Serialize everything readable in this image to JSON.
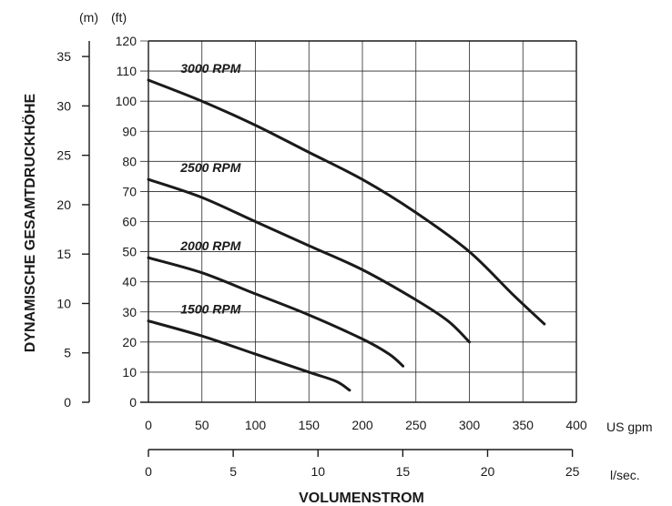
{
  "chart_data": {
    "type": "line",
    "ylabel": "DYNAMISCHE GESAMTDRUCKHÖHE",
    "xlabel": "VOLUMENSTROM",
    "y_ft_unit": "(ft)",
    "y_m_unit": "(m)",
    "x_gpm_unit": "US gpm",
    "x_ls_unit": "l/sec.",
    "ylim_ft": [
      0,
      120
    ],
    "ylim_m": [
      0,
      35
    ],
    "xlim_gpm": [
      0,
      400
    ],
    "xlim_ls": [
      0,
      25
    ],
    "y_ft_ticks": [
      "0",
      "10",
      "20",
      "30",
      "40",
      "50",
      "60",
      "70",
      "80",
      "90",
      "100",
      "110",
      "120"
    ],
    "y_m_ticks": [
      "0",
      "5",
      "10",
      "15",
      "20",
      "25",
      "30",
      "35"
    ],
    "x_gpm_ticks": [
      "0",
      "50",
      "100",
      "150",
      "200",
      "250",
      "300",
      "350",
      "400"
    ],
    "x_ls_ticks": [
      "0",
      "5",
      "10",
      "15",
      "20",
      "25"
    ],
    "grid": true,
    "series": [
      {
        "name": "3000 RPM",
        "x": [
          0,
          50,
          100,
          150,
          200,
          250,
          300,
          340,
          370
        ],
        "y": [
          107,
          100,
          92,
          83,
          74,
          63,
          50,
          36,
          26
        ]
      },
      {
        "name": "2500 RPM",
        "x": [
          0,
          50,
          100,
          150,
          200,
          250,
          280,
          300
        ],
        "y": [
          74,
          68,
          60,
          52,
          44,
          34,
          27,
          20
        ]
      },
      {
        "name": "2000 RPM",
        "x": [
          0,
          50,
          100,
          150,
          200,
          225,
          238
        ],
        "y": [
          48,
          43,
          36,
          29,
          21,
          16,
          12
        ]
      },
      {
        "name": "1500 RPM",
        "x": [
          0,
          50,
          100,
          150,
          175,
          188
        ],
        "y": [
          27,
          22,
          16,
          10,
          7,
          4
        ]
      }
    ]
  }
}
